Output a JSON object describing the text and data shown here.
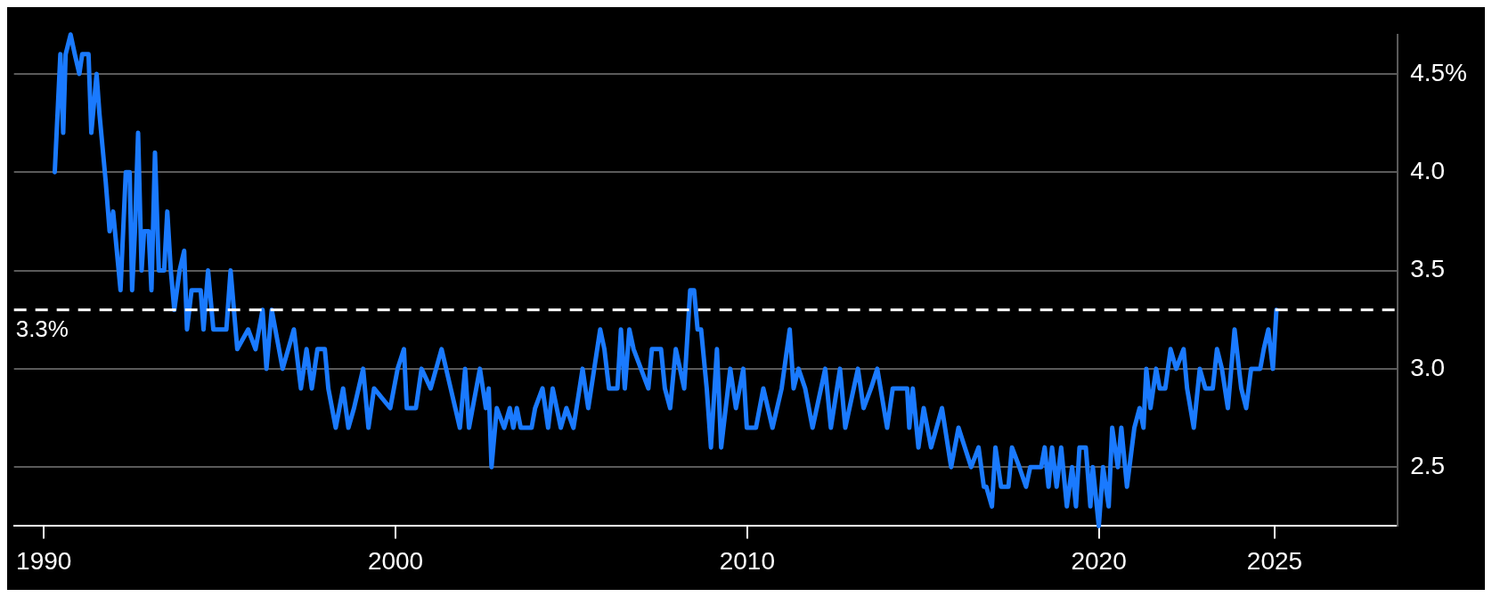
{
  "chart_data": {
    "type": "line",
    "x": [
      1990.31,
      1990.47,
      1990.55,
      1990.62,
      1990.76,
      1990.88,
      1991.01,
      1991.09,
      1991.27,
      1991.35,
      1991.5,
      1991.58,
      1991.76,
      1991.87,
      1991.97,
      1992.18,
      1992.33,
      1992.44,
      1992.51,
      1992.59,
      1992.68,
      1992.78,
      1992.85,
      1992.98,
      1993.06,
      1993.16,
      1993.27,
      1993.42,
      1993.51,
      1993.61,
      1993.71,
      1993.86,
      1993.99,
      1994.07,
      1994.2,
      1994.46,
      1994.54,
      1994.67,
      1994.82,
      1995.19,
      1995.31,
      1995.5,
      1995.81,
      1996.02,
      1996.22,
      1996.33,
      1996.48,
      1996.79,
      1997.11,
      1997.31,
      1997.47,
      1997.62,
      1997.78,
      1997.99,
      1998.09,
      1998.3,
      1998.51,
      1998.66,
      1998.82,
      1999.08,
      1999.23,
      1999.39,
      1999.85,
      2000.06,
      2000.24,
      2000.32,
      2000.58,
      2000.74,
      2001.0,
      2001.31,
      2001.57,
      2001.83,
      2001.98,
      2002.09,
      2002.4,
      2002.57,
      2002.65,
      2002.73,
      2002.88,
      2003.09,
      2003.25,
      2003.35,
      2003.45,
      2003.56,
      2003.87,
      2003.97,
      2004.18,
      2004.34,
      2004.47,
      2004.7,
      2004.86,
      2005.06,
      2005.32,
      2005.48,
      2005.82,
      2005.94,
      2006.07,
      2006.31,
      2006.41,
      2006.52,
      2006.65,
      2006.77,
      2006.98,
      2007.19,
      2007.29,
      2007.55,
      2007.66,
      2007.81,
      2007.97,
      2008.21,
      2008.38,
      2008.49,
      2008.59,
      2008.69,
      2008.85,
      2008.97,
      2009.14,
      2009.26,
      2009.52,
      2009.68,
      2009.89,
      2009.99,
      2010.25,
      2010.46,
      2010.72,
      2010.98,
      2011.21,
      2011.32,
      2011.46,
      2011.65,
      2011.86,
      2012.22,
      2012.38,
      2012.64,
      2012.79,
      2013.15,
      2013.31,
      2013.52,
      2013.7,
      2013.98,
      2014.14,
      2014.55,
      2014.61,
      2014.71,
      2014.87,
      2015.02,
      2015.23,
      2015.54,
      2015.8,
      2016.01,
      2016.37,
      2016.58,
      2016.73,
      2016.8,
      2016.96,
      2017.06,
      2017.22,
      2017.43,
      2017.53,
      2017.74,
      2017.93,
      2018.05,
      2018.36,
      2018.46,
      2018.57,
      2018.67,
      2018.8,
      2018.93,
      2019.09,
      2019.24,
      2019.35,
      2019.45,
      2019.63,
      2019.76,
      2019.83,
      2020.0,
      2020.12,
      2020.28,
      2020.38,
      2020.54,
      2020.64,
      2020.8,
      2021.01,
      2021.16,
      2021.27,
      2021.35,
      2021.47,
      2021.63,
      2021.73,
      2021.89,
      2022.04,
      2022.2,
      2022.41,
      2022.51,
      2022.7,
      2022.87,
      2023.03,
      2023.24,
      2023.36,
      2023.5,
      2023.67,
      2023.86,
      2024.05,
      2024.19,
      2024.33,
      2024.59,
      2024.69,
      2024.82,
      2024.95,
      2025.05
    ],
    "series": [
      {
        "color": "#1a7aff",
        "values": [
          4.0,
          4.6,
          4.2,
          4.6,
          4.7,
          4.6,
          4.5,
          4.6,
          4.6,
          4.2,
          4.5,
          4.3,
          3.95,
          3.7,
          3.8,
          3.4,
          4.0,
          4.0,
          3.4,
          3.7,
          4.2,
          3.5,
          3.7,
          3.7,
          3.4,
          4.1,
          3.5,
          3.5,
          3.8,
          3.5,
          3.3,
          3.5,
          3.6,
          3.2,
          3.4,
          3.4,
          3.2,
          3.5,
          3.2,
          3.2,
          3.5,
          3.1,
          3.2,
          3.1,
          3.3,
          3.0,
          3.3,
          3.0,
          3.2,
          2.9,
          3.1,
          2.9,
          3.1,
          3.1,
          2.9,
          2.7,
          2.9,
          2.7,
          2.8,
          3.0,
          2.7,
          2.9,
          2.8,
          3.0,
          3.1,
          2.8,
          2.8,
          3.0,
          2.9,
          3.1,
          2.9,
          2.7,
          3.0,
          2.7,
          3.0,
          2.8,
          2.9,
          2.5,
          2.8,
          2.7,
          2.8,
          2.7,
          2.8,
          2.7,
          2.7,
          2.8,
          2.9,
          2.7,
          2.9,
          2.7,
          2.8,
          2.7,
          3.0,
          2.8,
          3.2,
          3.1,
          2.9,
          2.9,
          3.2,
          2.9,
          3.2,
          3.1,
          3.0,
          2.9,
          3.1,
          3.1,
          2.9,
          2.8,
          3.1,
          2.9,
          3.4,
          3.4,
          3.2,
          3.2,
          2.9,
          2.6,
          3.1,
          2.6,
          3.0,
          2.8,
          3.0,
          2.7,
          2.7,
          2.9,
          2.7,
          2.9,
          3.2,
          2.9,
          3.0,
          2.9,
          2.7,
          3.0,
          2.7,
          3.0,
          2.7,
          3.0,
          2.8,
          2.9,
          3.0,
          2.7,
          2.9,
          2.9,
          2.7,
          2.9,
          2.6,
          2.8,
          2.6,
          2.8,
          2.5,
          2.7,
          2.5,
          2.6,
          2.4,
          2.4,
          2.3,
          2.6,
          2.4,
          2.4,
          2.6,
          2.5,
          2.4,
          2.5,
          2.5,
          2.6,
          2.4,
          2.6,
          2.4,
          2.6,
          2.3,
          2.5,
          2.3,
          2.6,
          2.6,
          2.3,
          2.5,
          2.2,
          2.5,
          2.3,
          2.7,
          2.5,
          2.7,
          2.4,
          2.7,
          2.8,
          2.7,
          3.0,
          2.8,
          3.0,
          2.9,
          2.9,
          3.1,
          3.0,
          3.1,
          2.9,
          2.7,
          3.0,
          2.9,
          2.9,
          3.1,
          3.0,
          2.8,
          3.2,
          2.9,
          2.8,
          3.0,
          3.0,
          3.1,
          3.2,
          3.0,
          3.3
        ]
      }
    ],
    "xlim": [
      1989.15,
      2028.5
    ],
    "xticks": [
      1990,
      2000,
      2010,
      2020,
      2025
    ],
    "ylim": [
      2.2,
      4.7
    ],
    "yticks": [
      {
        "value": 2.5,
        "label": "2.5"
      },
      {
        "value": 3.0,
        "label": "3.0"
      },
      {
        "value": 3.5,
        "label": "3.5"
      },
      {
        "value": 4.0,
        "label": "4.0"
      },
      {
        "value": 4.5,
        "label": "4.5%"
      }
    ],
    "grid": "y",
    "ref_lines": [
      {
        "axis": "y",
        "value": 3.3,
        "label": "3.3%",
        "color": "#ffffff",
        "line_style": "dashed"
      }
    ]
  }
}
